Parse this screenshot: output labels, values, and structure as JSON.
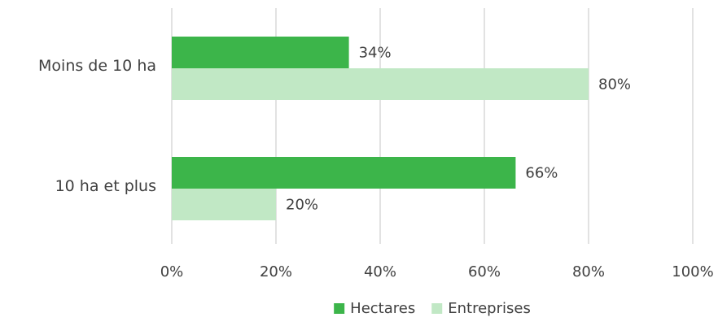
{
  "chart_data": {
    "type": "bar",
    "orientation": "horizontal",
    "categories": [
      "Moins de 10 ha",
      "10 ha et plus"
    ],
    "series": [
      {
        "name": "Hectares",
        "values": [
          34,
          66
        ],
        "color": "#3cb54a"
      },
      {
        "name": "Entreprises",
        "values": [
          80,
          20
        ],
        "color": "#c1e8c5"
      }
    ],
    "data_labels": [
      [
        "34%",
        "66%"
      ],
      [
        "80%",
        "20%"
      ]
    ],
    "x_ticks": [
      "0%",
      "20%",
      "40%",
      "60%",
      "80%",
      "100%"
    ],
    "xlim": [
      0,
      100
    ],
    "grid": true,
    "legend_position": "bottom",
    "title": "",
    "xlabel": "",
    "ylabel": ""
  }
}
